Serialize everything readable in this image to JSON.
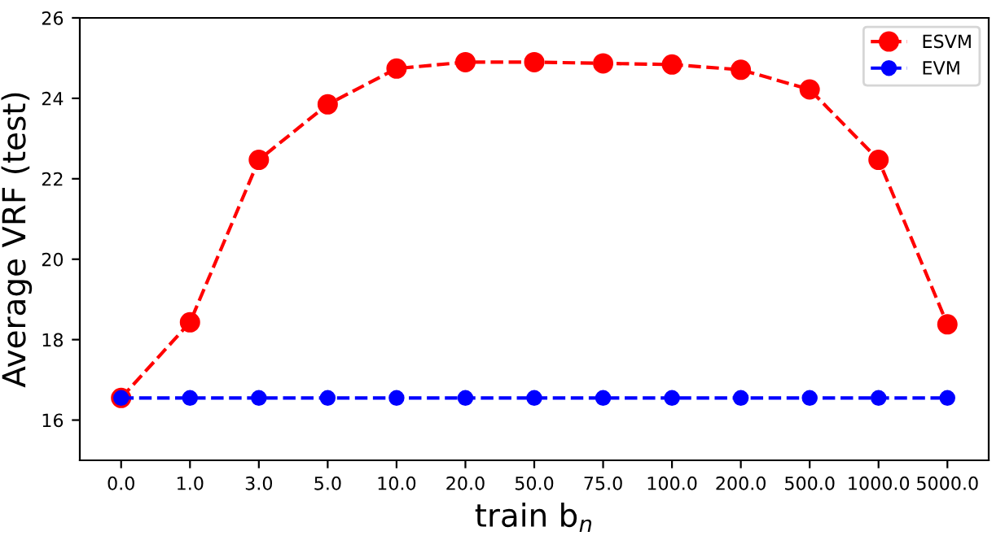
{
  "chart_data": {
    "type": "line",
    "xlabel": "train b$_{n}$",
    "ylabel": "Average VRF (test)",
    "categories": [
      "0.0",
      "1.0",
      "3.0",
      "5.0",
      "10.0",
      "20.0",
      "50.0",
      "75.0",
      "100.0",
      "200.0",
      "500.0",
      "1000.0",
      "5000.0"
    ],
    "series": [
      {
        "name": "ESVM",
        "color": "#ff0000",
        "values": [
          16.55,
          18.43,
          22.47,
          23.85,
          24.74,
          24.9,
          24.9,
          24.87,
          24.84,
          24.71,
          24.22,
          22.47,
          18.38
        ]
      },
      {
        "name": "EVM",
        "color": "#0000ff",
        "values": [
          16.55,
          16.55,
          16.55,
          16.55,
          16.55,
          16.55,
          16.55,
          16.55,
          16.55,
          16.55,
          16.55,
          16.55,
          16.55
        ]
      }
    ],
    "ylim": [
      15,
      26
    ],
    "yticks": [
      16,
      18,
      20,
      22,
      24,
      26
    ],
    "grid": false,
    "legend": "top right",
    "marker": "circle",
    "line_style": "dashed"
  }
}
